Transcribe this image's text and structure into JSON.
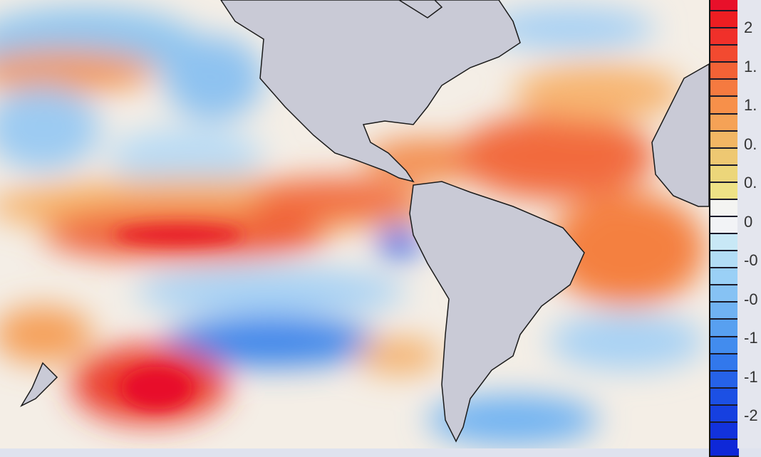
{
  "map": {
    "land_color": "#c9cad6",
    "border_color": "#1a1a1a",
    "regions_shown": [
      "North America",
      "Central America",
      "South America",
      "West Africa",
      "New Zealand"
    ]
  },
  "colorbar": {
    "labels": [
      "2",
      "1.",
      "1.",
      "0.",
      "0.",
      "0",
      "-0",
      "-0",
      "-1",
      "-1",
      "-2"
    ],
    "colors": [
      "#e8102a",
      "#ee1e22",
      "#f0302a",
      "#f24a30",
      "#f36236",
      "#f57a40",
      "#f7904a",
      "#f5a256",
      "#f2b664",
      "#eec872",
      "#ecd67a",
      "#eee286",
      "#f4f4f2",
      "#f2f3f6",
      "#c8e8f6",
      "#b2ddf6",
      "#9ad0f6",
      "#86c2f4",
      "#70b2f2",
      "#58a0f0",
      "#428cee",
      "#3278ec",
      "#2662e8",
      "#1c50e4",
      "#1640e0",
      "#1232dc",
      "#0e28d8"
    ]
  }
}
